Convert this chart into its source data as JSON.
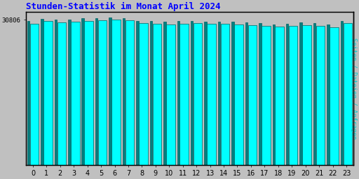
{
  "title": "Stunden-Statistik im Monat April 2024",
  "ylabel": "Seiten / Dateien / Anfragen",
  "xlabel_ticks": [
    0,
    1,
    2,
    3,
    4,
    5,
    6,
    7,
    8,
    9,
    10,
    11,
    12,
    13,
    14,
    15,
    16,
    17,
    18,
    19,
    20,
    21,
    22,
    23
  ],
  "ytick_label": "30806",
  "background_color": "#c0c0c0",
  "plot_bg_color": "#c0c0c0",
  "title_color": "#0000ff",
  "ylabel_color": "#00cccc",
  "border_color": "#000000",
  "dark_bar_color": "#008080",
  "cyan_bar_color": "#00ffff",
  "dark_bar_edge": "#006060",
  "cyan_bar_edge": "#006060",
  "pages": [
    30500,
    31000,
    30800,
    30900,
    31100,
    31200,
    31300,
    31200,
    30600,
    30500,
    30400,
    30500,
    30600,
    30450,
    30450,
    30400,
    30200,
    30100,
    29900,
    30000,
    30200,
    30050,
    29800,
    30600
  ],
  "requests": [
    30000,
    30500,
    30300,
    30400,
    30600,
    30700,
    30800,
    30700,
    30100,
    30000,
    29900,
    30000,
    30100,
    29950,
    29950,
    29900,
    29700,
    29600,
    29400,
    29500,
    29700,
    29550,
    29300,
    30100
  ],
  "ymax": 32500,
  "ytick_pos": 30806
}
